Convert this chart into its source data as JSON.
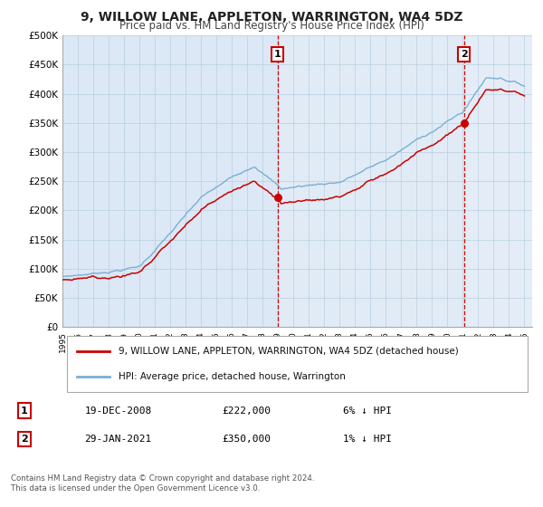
{
  "title": "9, WILLOW LANE, APPLETON, WARRINGTON, WA4 5DZ",
  "subtitle": "Price paid vs. HM Land Registry's House Price Index (HPI)",
  "legend_house": "9, WILLOW LANE, APPLETON, WARRINGTON, WA4 5DZ (detached house)",
  "legend_hpi": "HPI: Average price, detached house, Warrington",
  "annotation1_date": "19-DEC-2008",
  "annotation1_price": "£222,000",
  "annotation1_pct": "6% ↓ HPI",
  "annotation2_date": "29-JAN-2021",
  "annotation2_price": "£350,000",
  "annotation2_pct": "1% ↓ HPI",
  "footer1": "Contains HM Land Registry data © Crown copyright and database right 2024.",
  "footer2": "This data is licensed under the Open Government Licence v3.0.",
  "house_color": "#cc0000",
  "hpi_color": "#7bafd4",
  "vline_color": "#cc0000",
  "chart_bg": "#dce8f5",
  "grid_color": "#b8cfe0",
  "vspan_color": "#c5dff0",
  "ylim": [
    0,
    500000
  ],
  "yticks": [
    0,
    50000,
    100000,
    150000,
    200000,
    250000,
    300000,
    350000,
    400000,
    450000,
    500000
  ],
  "sale1_year": 2008.97,
  "sale1_value": 222000,
  "sale2_year": 2021.08,
  "sale2_value": 350000,
  "xmin": 1995,
  "xmax": 2025.5
}
